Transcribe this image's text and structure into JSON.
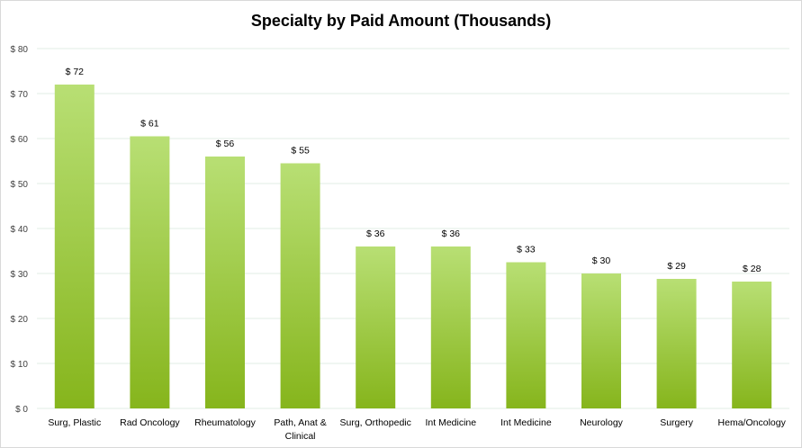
{
  "chart_data": {
    "type": "bar",
    "title": "Specialty by Paid Amount (Thousands)",
    "xlabel": "",
    "ylabel": "",
    "ylim": [
      0,
      80
    ],
    "yticks": [
      0,
      10,
      20,
      30,
      40,
      50,
      60,
      70,
      80
    ],
    "ytick_labels": [
      "$ 0",
      "$ 10",
      "$ 20",
      "$ 30",
      "$ 40",
      "$ 50",
      "$ 60",
      "$ 70",
      "$ 80"
    ],
    "grid": true,
    "legend": "none",
    "categories": [
      "Surg, Plastic",
      "Rad Oncology",
      "Rheumatology",
      "Path, Anat & Clinical",
      "Surg, Orthopedic",
      "Int Medicine",
      "Int Medicine",
      "Neurology",
      "Surgery",
      "Hema/Oncology"
    ],
    "values": [
      72,
      60.5,
      56,
      54.5,
      36,
      36,
      32.5,
      30,
      28.8,
      28.2
    ],
    "data_labels": [
      "$ 72",
      "$ 61",
      "$ 56",
      "$ 55",
      "$ 36",
      "$ 36",
      "$ 33",
      "$ 30",
      "$ 29",
      "$ 28"
    ],
    "colors": {
      "bar_top": "#b8df74",
      "bar_bottom": "#86b51c",
      "grid": "#e0ece6"
    }
  }
}
